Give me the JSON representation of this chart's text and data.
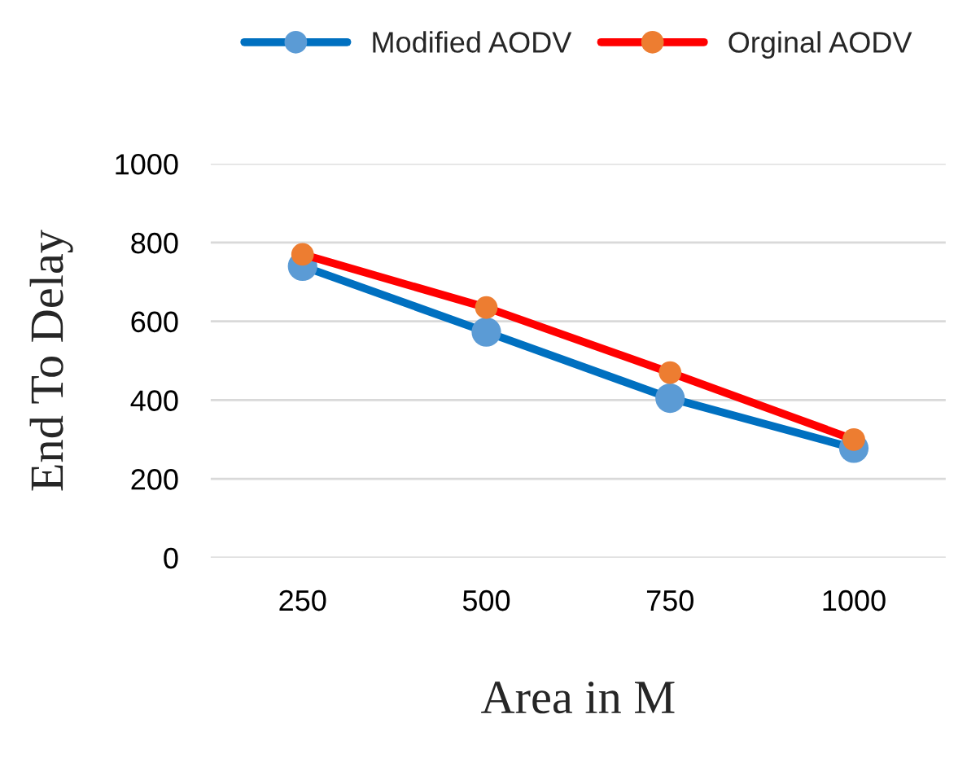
{
  "chart_data": {
    "type": "line",
    "xlabel": "Area in M",
    "ylabel": "End To Delay",
    "categories": [
      "250",
      "500",
      "750",
      "1000"
    ],
    "series": [
      {
        "name": "Modified AODV",
        "color": "#0070c0",
        "colors": [
          "#5b9bd5",
          "#5b9bd5",
          "#5b9bd5",
          "#5b9bd5"
        ],
        "values": [
          740,
          573,
          405,
          278
        ]
      },
      {
        "name": "Orginal AODV",
        "color": "#ff0000",
        "colors": [
          "#ed7d31",
          "#ed7d31",
          "#ed7d31",
          "#ed7d31"
        ],
        "values": [
          770,
          635,
          470,
          300
        ]
      }
    ],
    "ylim": [
      0,
      1000
    ],
    "yticks": [
      0,
      200,
      400,
      600,
      800,
      1000
    ],
    "grid": "y",
    "legend": "top",
    "marker": "circle",
    "line_style": "solid"
  }
}
